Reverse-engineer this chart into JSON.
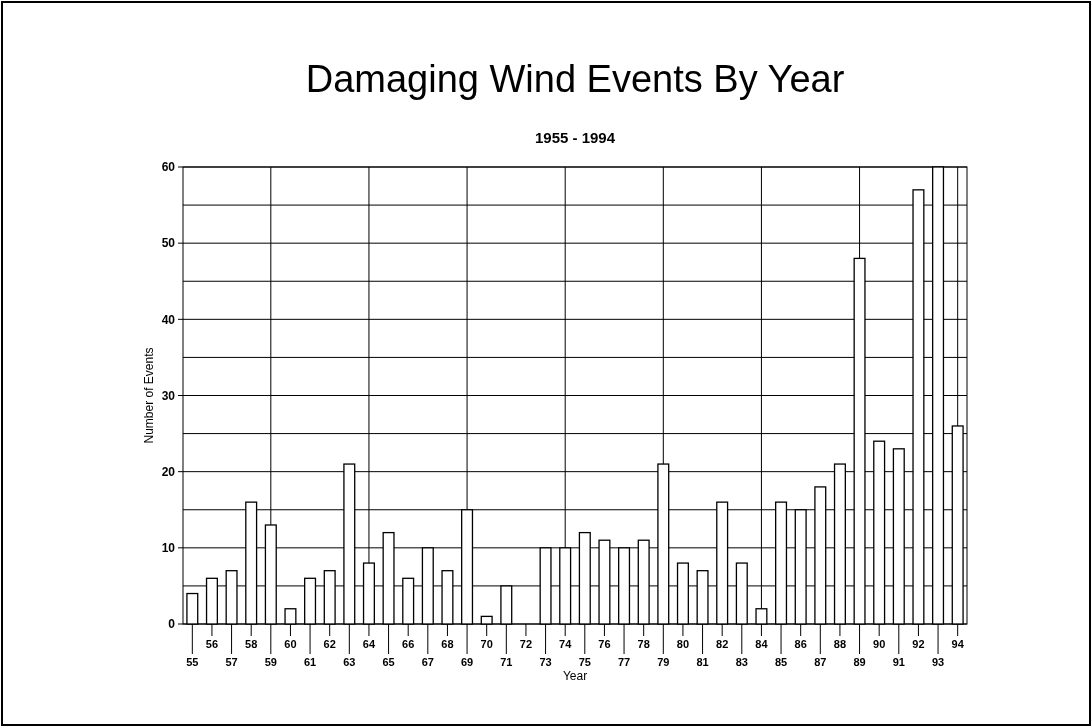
{
  "chart_data": {
    "type": "bar",
    "title": "Damaging Wind Events By Year",
    "subtitle": "1955 - 1994",
    "xlabel": "Year",
    "ylabel": "Number of Events",
    "categories": [
      "55",
      "56",
      "57",
      "58",
      "59",
      "60",
      "61",
      "62",
      "63",
      "64",
      "65",
      "66",
      "67",
      "68",
      "69",
      "70",
      "71",
      "72",
      "73",
      "74",
      "75",
      "76",
      "77",
      "78",
      "79",
      "80",
      "81",
      "82",
      "83",
      "84",
      "85",
      "86",
      "87",
      "88",
      "89",
      "90",
      "91",
      "92",
      "93",
      "94"
    ],
    "values": [
      4,
      6,
      7,
      16,
      13,
      2,
      6,
      7,
      21,
      8,
      12,
      6,
      10,
      7,
      15,
      1,
      5,
      0,
      10,
      10,
      12,
      11,
      10,
      11,
      21,
      8,
      7,
      16,
      8,
      2,
      16,
      15,
      18,
      21,
      48,
      24,
      23,
      57,
      60,
      26
    ],
    "color": "#ffffff",
    "ylim": [
      0,
      60
    ],
    "yticks": [
      0,
      10,
      20,
      30,
      40,
      50,
      60
    ],
    "grid": true
  }
}
